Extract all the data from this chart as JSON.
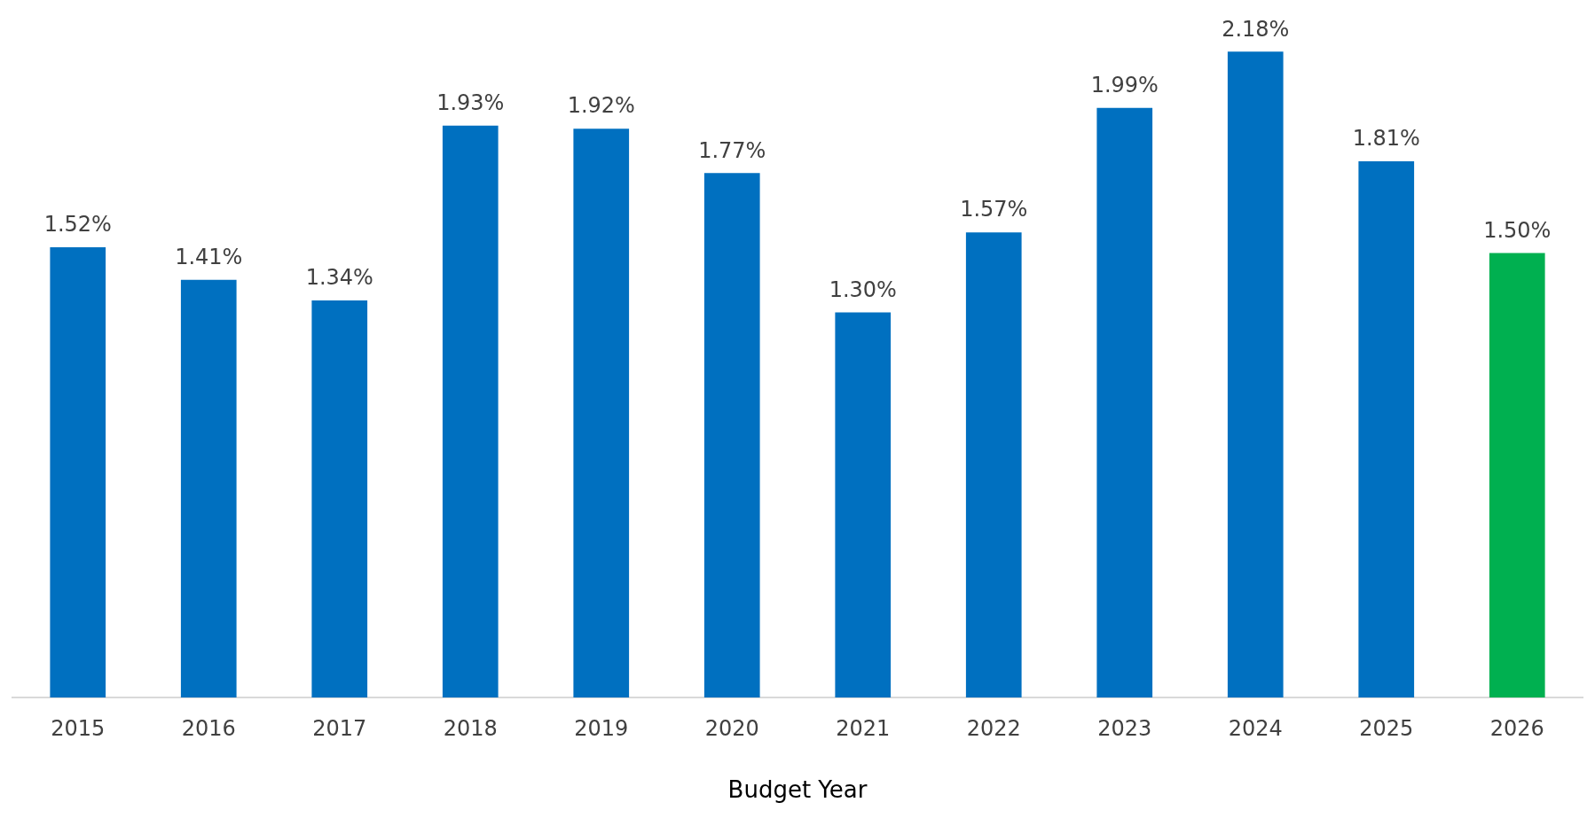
{
  "chart_data": {
    "type": "bar",
    "xlabel": "Budget Year",
    "categories": [
      "2015",
      "2016",
      "2017",
      "2018",
      "2019",
      "2020",
      "2021",
      "2022",
      "2023",
      "2024",
      "2025",
      "2026"
    ],
    "values": [
      1.52,
      1.41,
      1.34,
      1.93,
      1.92,
      1.77,
      1.3,
      1.57,
      1.99,
      2.18,
      1.81,
      1.5
    ],
    "value_labels": [
      "1.52%",
      "1.41%",
      "1.34%",
      "1.93%",
      "1.92%",
      "1.77%",
      "1.30%",
      "1.57%",
      "1.99%",
      "2.18%",
      "1.81%",
      "1.50%"
    ],
    "colors": [
      "#0070c0",
      "#0070c0",
      "#0070c0",
      "#0070c0",
      "#0070c0",
      "#0070c0",
      "#0070c0",
      "#0070c0",
      "#0070c0",
      "#0070c0",
      "#0070c0",
      "#00b050"
    ],
    "grid": false,
    "legend": false,
    "tick_labels": "x"
  }
}
